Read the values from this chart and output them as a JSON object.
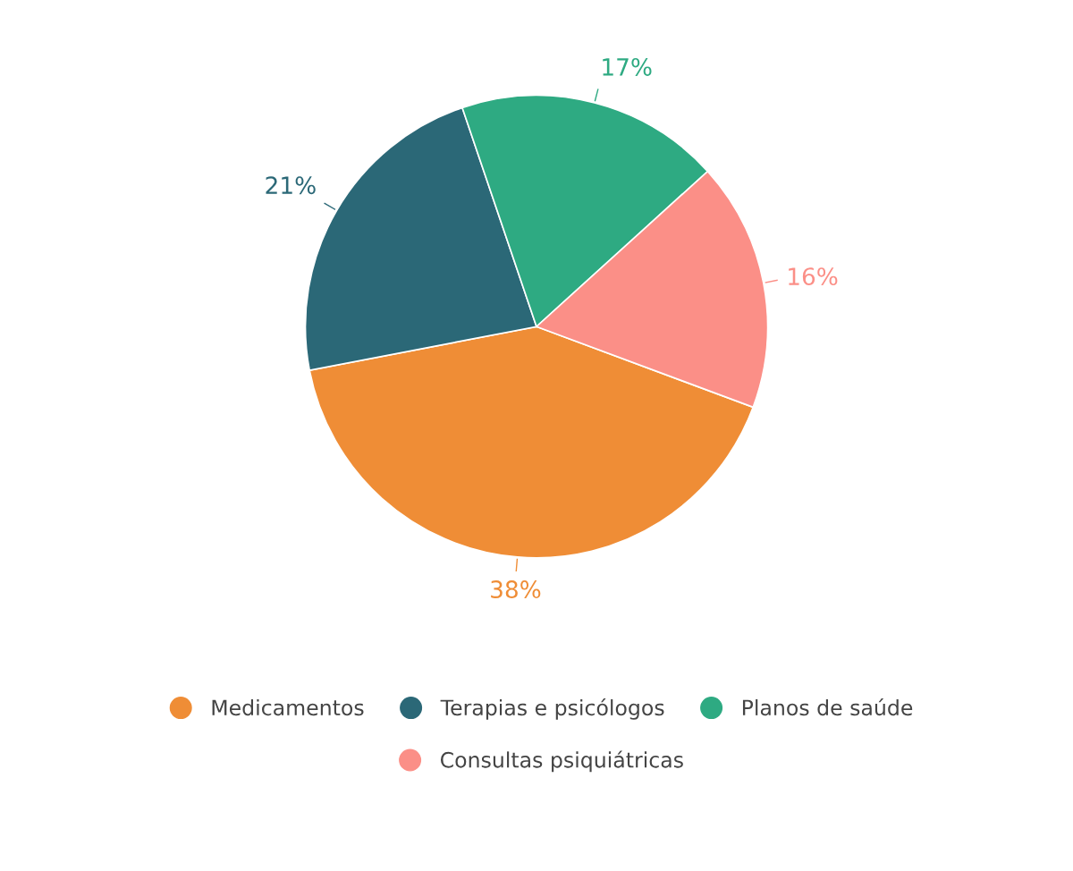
{
  "chart_data": {
    "type": "pie",
    "categories": [
      "Medicamentos",
      "Terapias e psicólogos",
      "Planos de saúde",
      "Consultas psiquiátricas"
    ],
    "values": [
      38,
      21,
      17,
      16
    ],
    "colors": [
      "#ef8d36",
      "#2b6877",
      "#2eaa82",
      "#fb8f87"
    ],
    "value_labels": [
      "38%",
      "21%",
      "17%",
      "16%"
    ],
    "legend": "bottom"
  }
}
